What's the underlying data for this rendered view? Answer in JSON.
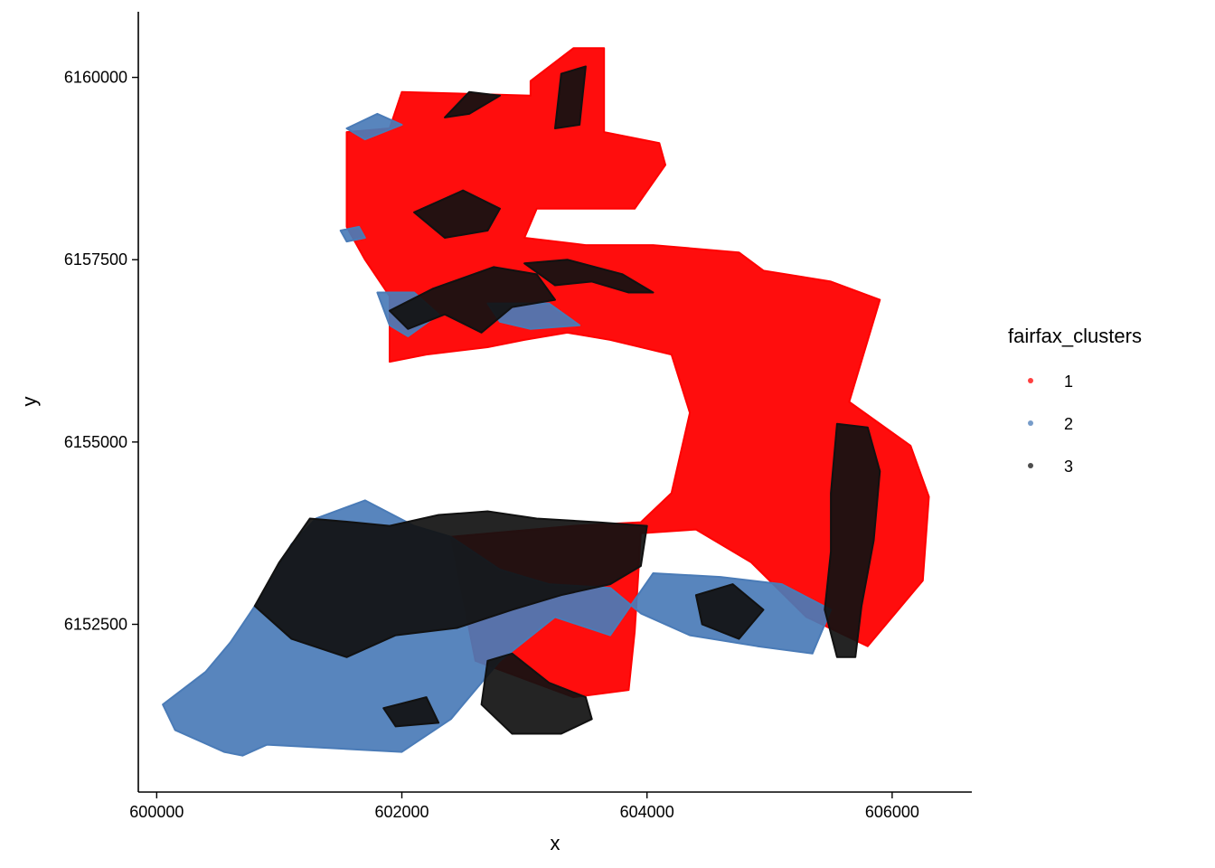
{
  "chart_data": {
    "type": "scatter",
    "title": "",
    "xlabel": "x",
    "ylabel": "y",
    "xlim": [
      599850,
      606650
    ],
    "ylim": [
      6150200,
      6160900
    ],
    "x_ticks": [
      600000,
      602000,
      604000,
      606000
    ],
    "x_tick_labels": [
      "600000",
      "602000",
      "604000",
      "606000"
    ],
    "y_ticks": [
      6152500,
      6155000,
      6157500,
      6160000
    ],
    "y_tick_labels": [
      "6152500",
      "6155000",
      "6157500",
      "6160000"
    ],
    "grid": false,
    "legend": {
      "title": "fairfax_clusters",
      "placement": "right",
      "entries": [
        {
          "label": "1",
          "color": "#ff0000"
        },
        {
          "label": "2",
          "color": "#4a7bb7"
        },
        {
          "label": "3",
          "color": "#111111"
        }
      ]
    },
    "series": [
      {
        "name": "1",
        "color": "#ff0000",
        "regions": [
          [
            [
              601550,
              6157950
            ],
            [
              601550,
              6159250
            ],
            [
              601900,
              6159300
            ],
            [
              602000,
              6159800
            ],
            [
              603050,
              6159750
            ],
            [
              603050,
              6159950
            ],
            [
              603400,
              6160400
            ],
            [
              603650,
              6160400
            ],
            [
              603650,
              6159250
            ],
            [
              604100,
              6159100
            ],
            [
              604150,
              6158800
            ],
            [
              603900,
              6158200
            ],
            [
              603100,
              6158200
            ],
            [
              603000,
              6157800
            ],
            [
              603500,
              6157700
            ],
            [
              604050,
              6157700
            ],
            [
              604750,
              6157600
            ],
            [
              604950,
              6157350
            ],
            [
              605500,
              6157200
            ],
            [
              605900,
              6156950
            ],
            [
              605650,
              6155550
            ],
            [
              606150,
              6154950
            ],
            [
              606300,
              6154250
            ],
            [
              606250,
              6153100
            ],
            [
              605800,
              6152200
            ],
            [
              605300,
              6152600
            ],
            [
              604850,
              6153350
            ],
            [
              604400,
              6153800
            ],
            [
              603950,
              6153750
            ],
            [
              603900,
              6152400
            ],
            [
              603850,
              6151600
            ],
            [
              603400,
              6151500
            ],
            [
              602600,
              6152000
            ],
            [
              602400,
              6153700
            ],
            [
              603400,
              6153850
            ],
            [
              603950,
              6153900
            ],
            [
              604200,
              6154300
            ],
            [
              604350,
              6155400
            ],
            [
              604200,
              6156200
            ],
            [
              603700,
              6156400
            ],
            [
              603350,
              6156500
            ],
            [
              603000,
              6156400
            ],
            [
              602700,
              6156300
            ],
            [
              602200,
              6156200
            ],
            [
              601900,
              6156100
            ],
            [
              601900,
              6157000
            ],
            [
              601700,
              6157500
            ]
          ]
        ]
      },
      {
        "name": "2",
        "color": "#4a7bb7",
        "regions": [
          [
            [
              600550,
              6150750
            ],
            [
              600700,
              6150700
            ],
            [
              600900,
              6150850
            ],
            [
              602000,
              6150750
            ],
            [
              602400,
              6151200
            ],
            [
              602800,
              6152000
            ],
            [
              603250,
              6152600
            ],
            [
              603700,
              6152350
            ],
            [
              604050,
              6153200
            ],
            [
              604600,
              6153150
            ],
            [
              605100,
              6153050
            ],
            [
              605500,
              6152700
            ],
            [
              605350,
              6152100
            ],
            [
              604900,
              6152200
            ],
            [
              604350,
              6152350
            ],
            [
              603950,
              6152650
            ],
            [
              603700,
              6153000
            ],
            [
              603200,
              6153050
            ],
            [
              602800,
              6153250
            ],
            [
              602400,
              6153700
            ],
            [
              602100,
              6153850
            ],
            [
              601700,
              6154200
            ],
            [
              601300,
              6153950
            ],
            [
              601100,
              6153600
            ],
            [
              600900,
              6153000
            ],
            [
              600600,
              6152250
            ],
            [
              600400,
              6151850
            ],
            [
              600050,
              6151400
            ],
            [
              600150,
              6151050
            ],
            [
              600350,
              6150900
            ]
          ],
          [
            [
              601800,
              6157050
            ],
            [
              602100,
              6157050
            ],
            [
              602300,
              6156750
            ],
            [
              602050,
              6156450
            ],
            [
              601900,
              6156600
            ]
          ],
          [
            [
              601550,
              6159300
            ],
            [
              601800,
              6159500
            ],
            [
              602000,
              6159350
            ],
            [
              601700,
              6159150
            ]
          ],
          [
            [
              602700,
              6156900
            ],
            [
              603200,
              6156900
            ],
            [
              603450,
              6156600
            ],
            [
              603050,
              6156550
            ],
            [
              602800,
              6156650
            ]
          ],
          [
            [
              601500,
              6157900
            ],
            [
              601650,
              6157950
            ],
            [
              601700,
              6157800
            ],
            [
              601550,
              6157750
            ]
          ]
        ]
      },
      {
        "name": "3",
        "color": "#111111",
        "regions": [
          [
            [
              601250,
              6153950
            ],
            [
              601600,
              6153900
            ],
            [
              601900,
              6153850
            ],
            [
              602300,
              6154000
            ],
            [
              602700,
              6154050
            ],
            [
              603100,
              6153950
            ],
            [
              603600,
              6153900
            ],
            [
              604000,
              6153850
            ],
            [
              603950,
              6153300
            ],
            [
              603700,
              6153050
            ],
            [
              603300,
              6152900
            ],
            [
              602900,
              6152700
            ],
            [
              602450,
              6152450
            ],
            [
              601950,
              6152350
            ],
            [
              601550,
              6152050
            ],
            [
              601100,
              6152300
            ],
            [
              600800,
              6152750
            ],
            [
              601000,
              6153350
            ]
          ],
          [
            [
              602700,
              6152000
            ],
            [
              602900,
              6152100
            ],
            [
              603200,
              6151700
            ],
            [
              603500,
              6151500
            ],
            [
              603550,
              6151200
            ],
            [
              603300,
              6151000
            ],
            [
              602900,
              6151000
            ],
            [
              602650,
              6151400
            ]
          ],
          [
            [
              605550,
              6155250
            ],
            [
              605800,
              6155200
            ],
            [
              605900,
              6154600
            ],
            [
              605850,
              6153650
            ],
            [
              605750,
              6152750
            ],
            [
              605700,
              6152050
            ],
            [
              605550,
              6152050
            ],
            [
              605450,
              6152700
            ],
            [
              605500,
              6153500
            ],
            [
              605500,
              6154300
            ]
          ],
          [
            [
              601900,
              6156800
            ],
            [
              602250,
              6157100
            ],
            [
              602750,
              6157400
            ],
            [
              603100,
              6157300
            ],
            [
              603250,
              6156950
            ],
            [
              602900,
              6156850
            ],
            [
              602650,
              6156500
            ],
            [
              602350,
              6156750
            ],
            [
              602050,
              6156550
            ]
          ],
          [
            [
              603000,
              6157450
            ],
            [
              603350,
              6157500
            ],
            [
              603800,
              6157300
            ],
            [
              604050,
              6157050
            ],
            [
              603850,
              6157050
            ],
            [
              603550,
              6157200
            ],
            [
              603250,
              6157150
            ]
          ],
          [
            [
              602100,
              6158150
            ],
            [
              602500,
              6158450
            ],
            [
              602800,
              6158200
            ],
            [
              602700,
              6157900
            ],
            [
              602350,
              6157800
            ]
          ],
          [
            [
              603250,
              6159300
            ],
            [
              603450,
              6159350
            ],
            [
              603500,
              6160150
            ],
            [
              603300,
              6160050
            ]
          ],
          [
            [
              602350,
              6159450
            ],
            [
              602550,
              6159800
            ],
            [
              602800,
              6159750
            ],
            [
              602550,
              6159500
            ]
          ],
          [
            [
              604400,
              6152900
            ],
            [
              604700,
              6153050
            ],
            [
              604950,
              6152700
            ],
            [
              604750,
              6152300
            ],
            [
              604450,
              6152500
            ]
          ],
          [
            [
              601850,
              6151350
            ],
            [
              602200,
              6151500
            ],
            [
              602300,
              6151150
            ],
            [
              601950,
              6151100
            ]
          ]
        ]
      }
    ]
  }
}
